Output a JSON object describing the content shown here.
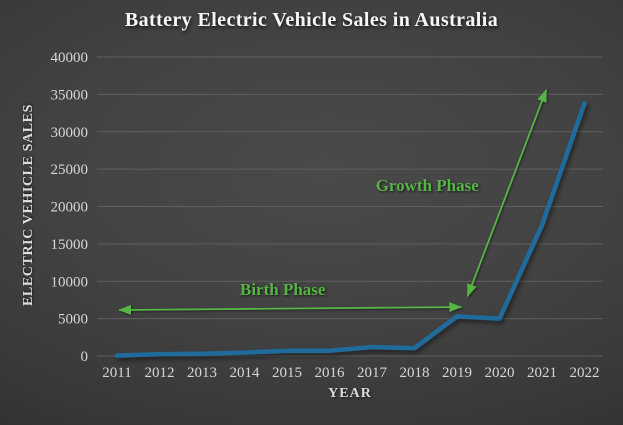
{
  "chart_data": {
    "type": "line",
    "title": "Battery Electric Vehicle Sales in Australia",
    "xlabel": "YEAR",
    "ylabel": "ELECTRIC VEHICLE SALES",
    "categories": [
      "2011",
      "2012",
      "2013",
      "2014",
      "2015",
      "2016",
      "2017",
      "2018",
      "2019",
      "2020",
      "2021",
      "2022"
    ],
    "series": [
      {
        "name": "Battery electric vehicle sales",
        "values": [
          50,
          250,
          300,
          450,
          700,
          700,
          1200,
          1050,
          5300,
          5000,
          17500,
          33800
        ]
      }
    ],
    "ylim": [
      0,
      40000
    ],
    "yticks": [
      0,
      5000,
      10000,
      15000,
      20000,
      25000,
      30000,
      35000,
      40000
    ],
    "grid": true,
    "legend": false,
    "annotations": [
      {
        "id": "birth-phase",
        "label": "Birth Phase",
        "shape": "horizontal-double-arrow",
        "from": {
          "year": 2011.05,
          "value": 6150
        },
        "to": {
          "year": 2019.1,
          "value": 6550
        },
        "label_at": {
          "year": 2014.9,
          "value": 8950
        }
      },
      {
        "id": "growth-phase",
        "label": "Growth Phase",
        "shape": "diagonal-double-arrow",
        "from": {
          "year": 2019.25,
          "value": 8000
        },
        "to": {
          "year": 2021.1,
          "value": 35600
        },
        "label_at": {
          "year": 2018.3,
          "value": 22900
        }
      }
    ],
    "colors": {
      "line": "#1f6b9b",
      "annotation": "#55b545",
      "grid": "#656565",
      "tick_text": "#d6d6d6",
      "title_text": "#f6f6f6"
    }
  }
}
